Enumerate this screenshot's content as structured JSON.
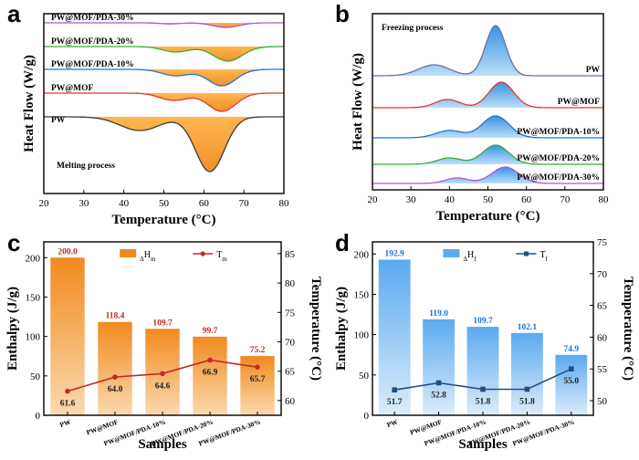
{
  "panels": [
    {
      "id": "a",
      "letter": "a",
      "type": "line",
      "xlabel": "Temperature (°C)",
      "ylabel": "Heat Flow (W/g)",
      "xlim": [
        20,
        80
      ],
      "xticks": [
        20,
        30,
        40,
        50,
        60,
        70,
        80
      ],
      "annotation": "Melting process",
      "series": [
        {
          "name": "PW@MOF/PDA-30%",
          "color": "#b452d8",
          "offset": 10,
          "peaks": [
            {
              "mu": 51.5,
              "sig": 2.6,
              "a": 1.2
            },
            {
              "mu": 65.5,
              "sig": 3.3,
              "a": 5
            }
          ]
        },
        {
          "name": "PW@MOF/PDA-20%",
          "color": "#3aa83a",
          "offset": 36,
          "peaks": [
            {
              "mu": 53,
              "sig": 3.3,
              "a": 6
            },
            {
              "mu": 66,
              "sig": 3.6,
              "a": 16
            }
          ]
        },
        {
          "name": "PW@MOF/PDA-10%",
          "color": "#1e73d2",
          "offset": 61,
          "peaks": [
            {
              "mu": 53,
              "sig": 3.5,
              "a": 7
            },
            {
              "mu": 64.5,
              "sig": 3.5,
              "a": 18
            }
          ]
        },
        {
          "name": "PW@MOF",
          "color": "#e8342a",
          "offset": 87,
          "peaks": [
            {
              "mu": 52.5,
              "sig": 3.5,
              "a": 8
            },
            {
              "mu": 64.5,
              "sig": 3.5,
              "a": 20
            }
          ]
        },
        {
          "name": "PW",
          "color": "#3a3a3a",
          "offset": 113,
          "peaks": [
            {
              "mu": 44,
              "sig": 5,
              "a": 15
            },
            {
              "mu": 61.5,
              "sig": 3.6,
              "a": 60
            }
          ]
        }
      ]
    },
    {
      "id": "b",
      "letter": "b",
      "type": "line",
      "xlabel": "Temperature (°C)",
      "ylabel": "Heat Flow (W/g)",
      "xlim": [
        20,
        80
      ],
      "xticks": [
        20,
        30,
        40,
        50,
        60,
        70,
        80
      ],
      "annotation": "Freezing process",
      "series": [
        {
          "name": "PW",
          "color": "#6c6ca8",
          "offset": 68,
          "peaks": [
            {
              "mu": 36,
              "sig": 4,
              "a": 12
            },
            {
              "mu": 52,
              "sig": 2.6,
              "a": 55
            }
          ]
        },
        {
          "name": "PW@MOF",
          "color": "#e8342a",
          "offset": 103,
          "peaks": [
            {
              "mu": 39.5,
              "sig": 3.2,
              "a": 9
            },
            {
              "mu": 53.5,
              "sig": 3.2,
              "a": 28
            }
          ]
        },
        {
          "name": "PW@MOF/PDA-10%",
          "color": "#1e73d2",
          "offset": 136,
          "peaks": [
            {
              "mu": 40,
              "sig": 3.5,
              "a": 8
            },
            {
              "mu": 52,
              "sig": 3.5,
              "a": 24
            }
          ]
        },
        {
          "name": "PW@MOF/PDA-20%",
          "color": "#3aa83a",
          "offset": 165,
          "peaks": [
            {
              "mu": 40,
              "sig": 3.2,
              "a": 7
            },
            {
              "mu": 52,
              "sig": 3.4,
              "a": 21
            }
          ]
        },
        {
          "name": "PW@MOF/PDA-30%",
          "color": "#b452d8",
          "offset": 186,
          "peaks": [
            {
              "mu": 42,
              "sig": 3,
              "a": 6
            },
            {
              "mu": 54.5,
              "sig": 3.5,
              "a": 18
            }
          ]
        }
      ]
    },
    {
      "id": "c",
      "letter": "c",
      "type": "bar",
      "xlabel": "Samples",
      "ylabel": "Enthalpy (J/g)",
      "y2label": "Temperature (°C)",
      "categories": [
        "PW",
        "PW@MOF",
        "PW@MOF/PDA-10%",
        "PW@MOF/PDA-20%",
        "PW@MOF/PDA-30%"
      ],
      "ylim": [
        0,
        220
      ],
      "yticks": [
        0,
        50,
        100,
        150,
        200
      ],
      "y2lim": [
        57.5,
        87
      ],
      "y2ticks": [
        60,
        65,
        70,
        75,
        80,
        85
      ],
      "bar_colors": [
        "#f08a1e",
        "#fcd9b0"
      ],
      "line_color": "#c62828",
      "series": [
        {
          "name": "ΔHm",
          "axis": "left",
          "values": [
            200.0,
            118.4,
            109.7,
            99.7,
            75.2
          ],
          "labels": [
            "200.0",
            "118.4",
            "109.7",
            "99.7",
            "75.2"
          ]
        },
        {
          "name": "Tm",
          "axis": "right",
          "values": [
            61.6,
            64.0,
            64.6,
            66.9,
            65.7
          ],
          "labels": [
            "61.6",
            "64.0",
            "64.6",
            "66.9",
            "65.7"
          ]
        }
      ]
    },
    {
      "id": "d",
      "letter": "d",
      "type": "bar",
      "xlabel": "Samples",
      "ylabel": "Enthalpy (J/g)",
      "y2label": "Temperature (°C)",
      "categories": [
        "PW",
        "PW@MOF",
        "PW@MOF/PDA-10%",
        "PW@MOF/PDA-20%",
        "PW@MOF/PDA-30%"
      ],
      "ylim": [
        0,
        215
      ],
      "yticks": [
        0,
        50,
        100,
        150,
        200
      ],
      "y2lim": [
        47.7,
        75
      ],
      "y2ticks": [
        50,
        55,
        60,
        65,
        70,
        75
      ],
      "bar_colors": [
        "#5aaaf0",
        "#dcecfb"
      ],
      "line_color": "#1f4f86",
      "series": [
        {
          "name": "ΔHf",
          "axis": "left",
          "values": [
            192.9,
            119.0,
            109.7,
            102.1,
            74.9
          ],
          "labels": [
            "192.9",
            "119.0",
            "109.7",
            "102.1",
            "74.9"
          ]
        },
        {
          "name": "Tf",
          "axis": "right",
          "values": [
            51.7,
            52.8,
            51.8,
            51.8,
            55.0
          ],
          "labels": [
            "51.7",
            "52.8",
            "51.8",
            "51.8",
            "55.0"
          ]
        }
      ]
    }
  ]
}
